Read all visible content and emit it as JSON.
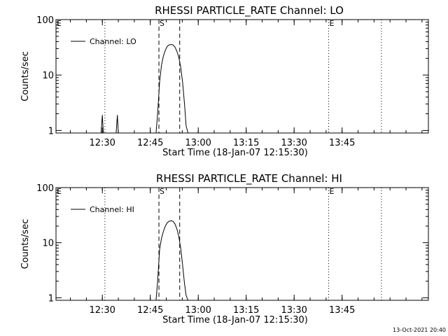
{
  "timestamp": "13-Oct-2021 20:40",
  "chart_data": [
    {
      "type": "line",
      "title": "RHESSI PARTICLE_RATE Channel: LO",
      "xlabel": "Start Time (18-Jan-07 12:15:30)",
      "ylabel": "Counts/sec",
      "xlim_minutes": [
        0,
        116.5
      ],
      "ylim": [
        0.9,
        100
      ],
      "y_log_scale": true,
      "xticks": [
        {
          "minutes": 14.5,
          "label": "12:30"
        },
        {
          "minutes": 29.5,
          "label": "12:45"
        },
        {
          "minutes": 44.5,
          "label": "13:00"
        },
        {
          "minutes": 59.5,
          "label": "13:15"
        },
        {
          "minutes": 74.5,
          "label": "13:30"
        },
        {
          "minutes": 89.5,
          "label": "13:45"
        }
      ],
      "yticks": [
        {
          "value": 1,
          "label": "1"
        },
        {
          "value": 10,
          "label": "10"
        },
        {
          "value": 100,
          "label": "100"
        }
      ],
      "legend": {
        "label": "Channel: LO",
        "position": "top-left"
      },
      "markers": [
        {
          "minutes": 15.3,
          "style": "dotted",
          "label": ""
        },
        {
          "minutes": 32.2,
          "style": "dashed",
          "label": "S"
        },
        {
          "minutes": 38.7,
          "style": "dashed",
          "label": ""
        },
        {
          "minutes": 85.3,
          "style": "dotted",
          "label": "E"
        },
        {
          "minutes": 101.8,
          "style": "dotted",
          "label": ""
        }
      ],
      "edge_marker_label": "E",
      "series": [
        {
          "x_minutes": [
            14.1,
            14.5,
            14.8,
            18.8,
            19.2,
            19.5,
            31.3,
            31.8,
            32.4,
            33.0,
            33.6,
            34.2,
            34.8,
            35.4,
            36.0,
            36.6,
            37.2,
            37.8,
            38.4,
            39.0,
            39.6,
            40.2,
            40.7,
            41.3
          ],
          "y": [
            0.9,
            1.9,
            0.9,
            0.9,
            1.9,
            0.9,
            0.9,
            2.0,
            7.5,
            15,
            22,
            28,
            33,
            35,
            35.5,
            35,
            32,
            27,
            21,
            14,
            7.5,
            3,
            1.2,
            0.9
          ]
        }
      ]
    },
    {
      "type": "line",
      "title": "RHESSI PARTICLE_RATE Channel: HI",
      "xlabel": "Start Time (18-Jan-07 12:15:30)",
      "ylabel": "Counts/sec",
      "xlim_minutes": [
        0,
        116.5
      ],
      "ylim": [
        0.9,
        100
      ],
      "y_log_scale": true,
      "xticks": [
        {
          "minutes": 14.5,
          "label": "12:30"
        },
        {
          "minutes": 29.5,
          "label": "12:45"
        },
        {
          "minutes": 44.5,
          "label": "13:00"
        },
        {
          "minutes": 59.5,
          "label": "13:15"
        },
        {
          "minutes": 74.5,
          "label": "13:30"
        },
        {
          "minutes": 89.5,
          "label": "13:45"
        }
      ],
      "yticks": [
        {
          "value": 1,
          "label": "1"
        },
        {
          "value": 10,
          "label": "10"
        },
        {
          "value": 100,
          "label": "100"
        }
      ],
      "legend": {
        "label": "Channel: HI",
        "position": "top-left"
      },
      "markers": [
        {
          "minutes": 15.3,
          "style": "dotted",
          "label": ""
        },
        {
          "minutes": 32.2,
          "style": "dashed",
          "label": "S"
        },
        {
          "minutes": 38.7,
          "style": "dashed",
          "label": ""
        },
        {
          "minutes": 85.3,
          "style": "dotted",
          "label": "E"
        },
        {
          "minutes": 101.8,
          "style": "dotted",
          "label": ""
        }
      ],
      "edge_marker_label": "E",
      "series": [
        {
          "x_minutes": [
            31.3,
            31.8,
            32.4,
            33.0,
            33.6,
            34.2,
            34.8,
            35.4,
            36.0,
            36.6,
            37.2,
            37.8,
            38.4,
            39.0,
            39.6,
            40.2,
            40.7,
            41.3
          ],
          "y": [
            0.9,
            2.0,
            7.5,
            12,
            16,
            20,
            23,
            24.5,
            25,
            24.5,
            22,
            18,
            13,
            8,
            4,
            1.8,
            1.1,
            0.9
          ]
        }
      ]
    }
  ]
}
